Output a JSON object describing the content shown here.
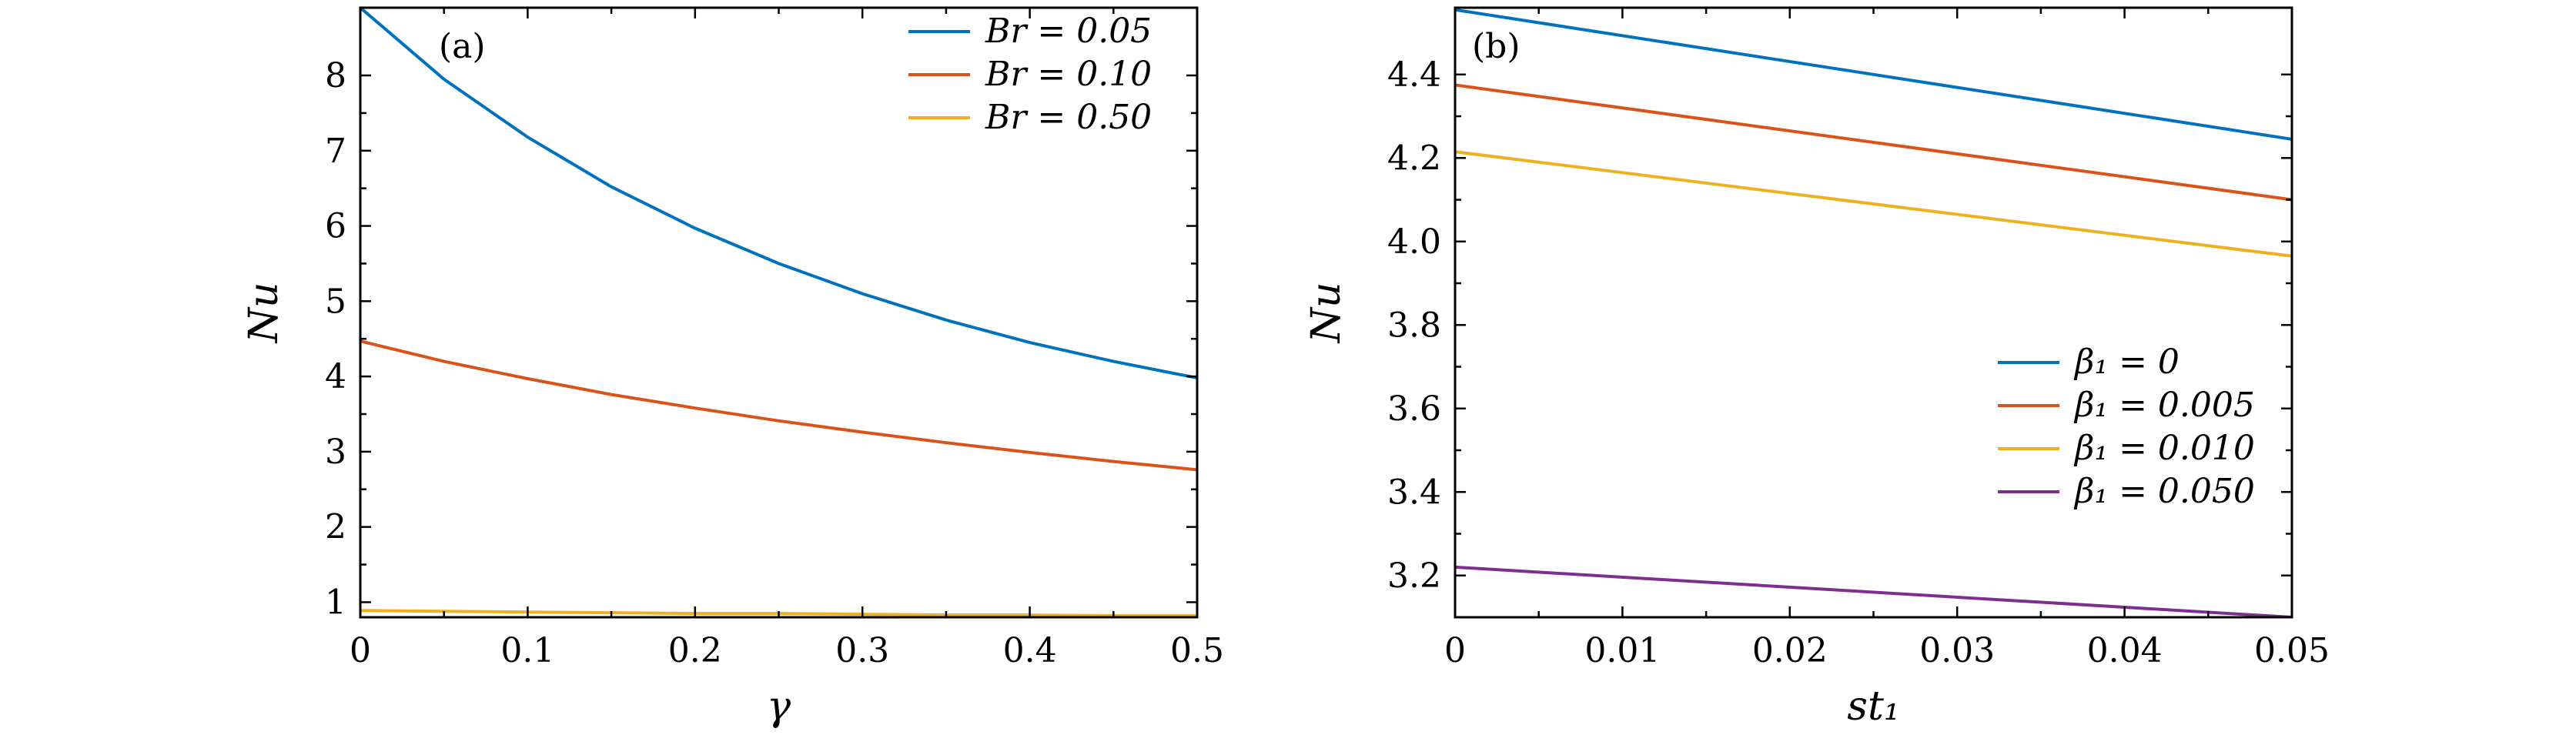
{
  "chart_data": [
    {
      "type": "line",
      "panel_label": "(a)",
      "xlabel": "γ",
      "ylabel": "Nu",
      "xlim": [
        0,
        0.5
      ],
      "ylim": [
        0.8,
        8.9
      ],
      "x_ticks": [
        0,
        0.1,
        0.2,
        0.3,
        0.4,
        0.5
      ],
      "x_tick_labels": [
        "0",
        "0.1",
        "0.2",
        "0.3",
        "0.4",
        "0.5"
      ],
      "y_ticks": [
        1,
        2,
        3,
        4,
        5,
        6,
        7,
        8
      ],
      "y_tick_labels": [
        "1",
        "2",
        "3",
        "4",
        "5",
        "6",
        "7",
        "8"
      ],
      "legend_position": "top-right",
      "x": [
        0,
        0.05,
        0.1,
        0.15,
        0.2,
        0.25,
        0.3,
        0.35,
        0.4,
        0.45,
        0.5
      ],
      "series": [
        {
          "name": "Br = 0.05",
          "color": "#0072BD",
          "values": [
            8.9,
            7.95,
            7.18,
            6.52,
            5.97,
            5.5,
            5.1,
            4.75,
            4.45,
            4.2,
            3.98
          ]
        },
        {
          "name": "Br = 0.10",
          "color": "#D95319",
          "values": [
            4.47,
            4.2,
            3.97,
            3.76,
            3.58,
            3.41,
            3.26,
            3.12,
            2.99,
            2.87,
            2.76
          ]
        },
        {
          "name": "Br = 0.50",
          "color": "#EDB120",
          "values": [
            0.89,
            0.88,
            0.87,
            0.86,
            0.85,
            0.85,
            0.84,
            0.83,
            0.83,
            0.82,
            0.82
          ]
        }
      ]
    },
    {
      "type": "line",
      "panel_label": "(b)",
      "xlabel": "st₁",
      "ylabel": "Nu",
      "xlim": [
        0,
        0.05
      ],
      "ylim": [
        3.1,
        4.56
      ],
      "x_ticks": [
        0,
        0.01,
        0.02,
        0.03,
        0.04,
        0.05
      ],
      "x_tick_labels": [
        "0",
        "0.01",
        "0.02",
        "0.03",
        "0.04",
        "0.05"
      ],
      "y_ticks": [
        3.2,
        3.4,
        3.6,
        3.8,
        4.0,
        4.2,
        4.4
      ],
      "y_tick_labels": [
        "3.2",
        "3.4",
        "3.6",
        "3.8",
        "4.0",
        "4.2",
        "4.4"
      ],
      "legend_position": "bottom-right",
      "x": [
        0,
        0.05
      ],
      "series": [
        {
          "name": "β₁ = 0",
          "color": "#0072BD",
          "values": [
            4.555,
            4.245
          ]
        },
        {
          "name": "β₁ = 0.005",
          "color": "#D95319",
          "values": [
            4.375,
            4.1
          ]
        },
        {
          "name": "β₁ = 0.010",
          "color": "#EDB120",
          "values": [
            4.215,
            3.965
          ]
        },
        {
          "name": "β₁ = 0.050",
          "color": "#7E2F8E",
          "values": [
            3.22,
            3.1
          ]
        }
      ]
    }
  ]
}
